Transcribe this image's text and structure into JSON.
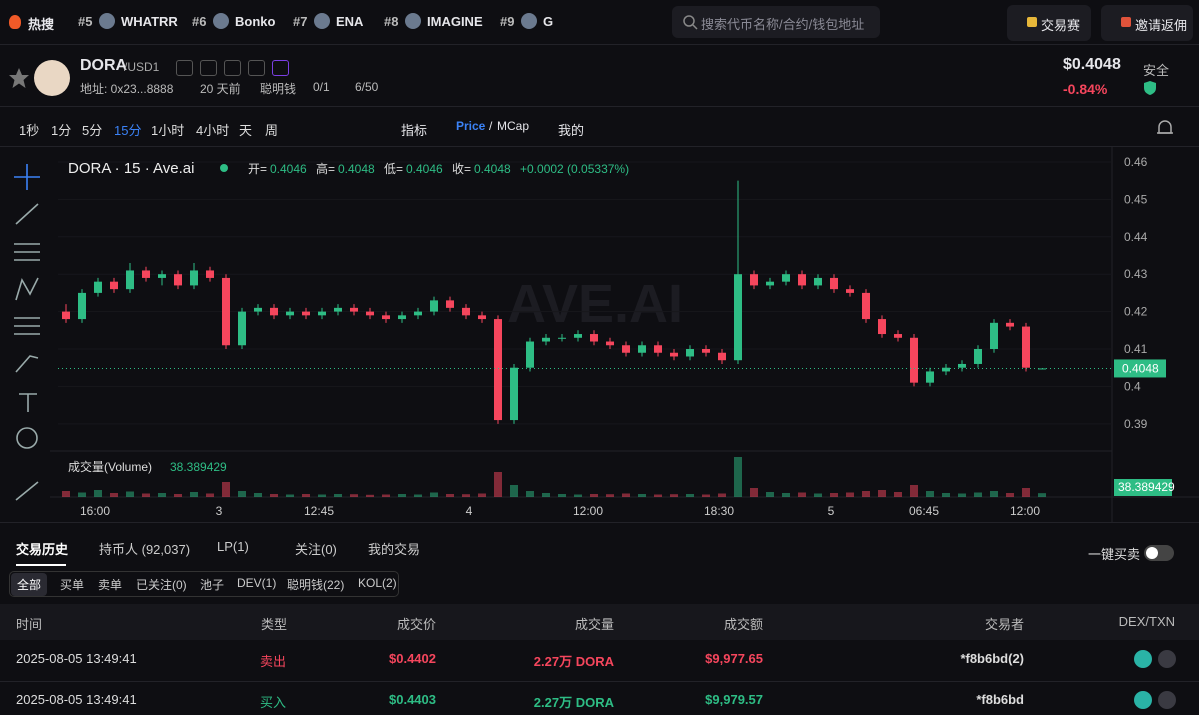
{
  "topbar": {
    "hot": "热搜",
    "trending": [
      {
        "rank": "#5",
        "name": "WHATRR"
      },
      {
        "rank": "#6",
        "name": "Bonko"
      },
      {
        "rank": "#7",
        "name": "ENA"
      },
      {
        "rank": "#8",
        "name": "IMAGINE"
      },
      {
        "rank": "#9",
        "name": "G"
      }
    ],
    "search_placeholder": "搜索代币名称/合约/钱包地址",
    "buttons": [
      "交易赛",
      "邀请返佣"
    ]
  },
  "token": {
    "symbol": "DORA",
    "quote": "/USD1",
    "address": "地址: 0x23...8888",
    "age": "20 天前",
    "smart_money_label": "聪明钱",
    "smart_money": "0/1",
    "rank": "6/50",
    "price": "$0.4048",
    "change": "-0.84%",
    "safety": "安全"
  },
  "toolbar": {
    "intervals": [
      "1秒",
      "1分",
      "5分",
      "15分",
      "1小时",
      "4小时",
      "天",
      "周"
    ],
    "indicators": "指标",
    "price": "Price",
    "separator": "/",
    "mcap": "MCap",
    "mine": "我的"
  },
  "chart_data": {
    "type": "candlestick",
    "title": "DORA · 15 · Ave.ai",
    "legend_labels": [
      "开=",
      "高=",
      "低=",
      "收="
    ],
    "change": "+0.0002 (0.05337%)",
    "watermark": "AVE.AI",
    "volume_title": "成交量(Volume)",
    "up_color": "#2ebd85",
    "down_color": "#f6465d",
    "ylim": [
      0.383,
      0.4632
    ],
    "yticks": [
      0.46,
      0.45,
      0.44,
      0.43,
      0.42,
      0.41,
      0.4,
      0.39
    ],
    "volume_lim": [
      0,
      420
    ],
    "xtick_labels": [
      "16:00",
      "3",
      "12:45",
      "4",
      "12:00",
      "18:30",
      "5",
      "06:45",
      "12:00"
    ],
    "open": [
      0.42,
      0.418,
      0.425,
      0.428,
      0.426,
      0.431,
      0.429,
      0.43,
      0.427,
      0.431,
      0.429,
      0.411,
      0.42,
      0.421,
      0.419,
      0.42,
      0.419,
      0.42,
      0.421,
      0.42,
      0.419,
      0.418,
      0.419,
      0.42,
      0.423,
      0.421,
      0.419,
      0.418,
      0.391,
      0.405,
      0.412,
      0.413,
      0.413,
      0.414,
      0.412,
      0.411,
      0.409,
      0.411,
      0.409,
      0.408,
      0.41,
      0.409,
      0.407,
      0.43,
      0.427,
      0.428,
      0.43,
      0.427,
      0.429,
      0.426,
      0.425,
      0.418,
      0.414,
      0.413,
      0.401,
      0.404,
      0.405,
      0.406,
      0.41,
      0.417,
      0.416,
      0.4046
    ],
    "high": [
      0.422,
      0.426,
      0.429,
      0.429,
      0.433,
      0.432,
      0.431,
      0.431,
      0.433,
      0.432,
      0.43,
      0.421,
      0.422,
      0.422,
      0.421,
      0.421,
      0.421,
      0.422,
      0.422,
      0.421,
      0.42,
      0.42,
      0.421,
      0.424,
      0.424,
      0.422,
      0.42,
      0.419,
      0.406,
      0.413,
      0.414,
      0.414,
      0.415,
      0.415,
      0.413,
      0.412,
      0.412,
      0.412,
      0.41,
      0.411,
      0.411,
      0.41,
      0.455,
      0.431,
      0.429,
      0.431,
      0.431,
      0.43,
      0.43,
      0.427,
      0.426,
      0.419,
      0.415,
      0.414,
      0.405,
      0.406,
      0.407,
      0.411,
      0.418,
      0.418,
      0.417,
      0.4048
    ],
    "low": [
      0.417,
      0.417,
      0.424,
      0.425,
      0.425,
      0.428,
      0.427,
      0.426,
      0.426,
      0.428,
      0.41,
      0.41,
      0.419,
      0.418,
      0.418,
      0.418,
      0.418,
      0.419,
      0.419,
      0.418,
      0.417,
      0.417,
      0.418,
      0.419,
      0.42,
      0.418,
      0.417,
      0.39,
      0.39,
      0.404,
      0.411,
      0.412,
      0.412,
      0.411,
      0.41,
      0.408,
      0.408,
      0.408,
      0.407,
      0.407,
      0.408,
      0.406,
      0.406,
      0.426,
      0.426,
      0.427,
      0.426,
      0.426,
      0.425,
      0.424,
      0.417,
      0.413,
      0.412,
      0.4,
      0.4,
      0.403,
      0.404,
      0.405,
      0.409,
      0.415,
      0.404,
      0.4046
    ],
    "close": [
      0.418,
      0.425,
      0.428,
      0.426,
      0.431,
      0.429,
      0.43,
      0.427,
      0.431,
      0.429,
      0.411,
      0.42,
      0.421,
      0.419,
      0.42,
      0.419,
      0.42,
      0.421,
      0.42,
      0.419,
      0.418,
      0.419,
      0.42,
      0.423,
      0.421,
      0.419,
      0.418,
      0.391,
      0.405,
      0.412,
      0.413,
      0.413,
      0.414,
      0.412,
      0.411,
      0.409,
      0.411,
      0.409,
      0.408,
      0.41,
      0.409,
      0.407,
      0.43,
      0.427,
      0.428,
      0.43,
      0.427,
      0.429,
      0.426,
      0.425,
      0.418,
      0.414,
      0.413,
      0.401,
      0.404,
      0.405,
      0.406,
      0.41,
      0.417,
      0.416,
      0.405,
      0.4048
    ],
    "volume": [
      60,
      45,
      70,
      40,
      55,
      35,
      40,
      30,
      50,
      35,
      150,
      60,
      40,
      30,
      25,
      30,
      25,
      30,
      28,
      22,
      25,
      30,
      25,
      45,
      30,
      28,
      35,
      250,
      120,
      60,
      40,
      30,
      25,
      30,
      28,
      35,
      30,
      25,
      28,
      30,
      25,
      35,
      400,
      90,
      50,
      40,
      45,
      35,
      40,
      45,
      60,
      70,
      50,
      120,
      60,
      40,
      35,
      45,
      60,
      40,
      90,
      38.389429
    ]
  },
  "tabs": [
    "交易历史",
    "持币人 (92,037)",
    "LP(1)",
    "关注(0)",
    "我的交易"
  ],
  "one_click": "一键买卖",
  "filters": [
    "全部",
    "买单",
    "卖单",
    "已关注(0)",
    "池子",
    "DEV(1)",
    "聪明钱(22)",
    "KOL(2)"
  ],
  "table": {
    "columns": [
      "时间",
      "类型",
      "成交价",
      "成交量",
      "成交额",
      "交易者",
      "DEX/TXN"
    ],
    "rows": [
      [
        "2025-08-05 13:49:41",
        "卖出",
        "$0.4402",
        "2.27万 DORA",
        "$9,977.65",
        "*f8b6bd(2)"
      ],
      [
        "2025-08-05 13:49:41",
        "买入",
        "$0.4403",
        "2.27万 DORA",
        "$9,979.57",
        "*f8b6bd"
      ]
    ]
  }
}
